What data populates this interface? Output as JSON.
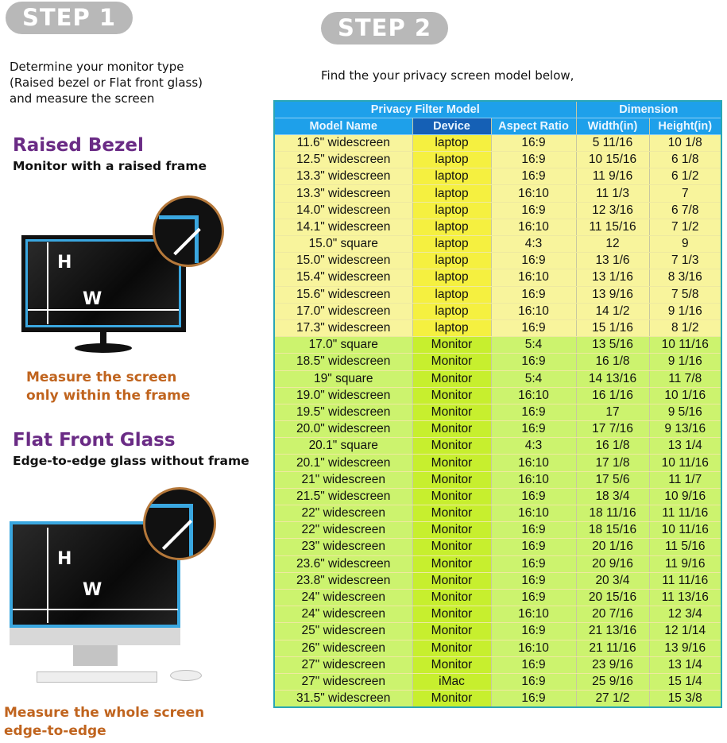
{
  "step1": {
    "badge": "STEP 1",
    "intro": [
      "Determine your monitor type",
      "(Raised bezel or Flat front glass)",
      "and measure the screen"
    ],
    "raised": {
      "title": "Raised Bezel",
      "subtitle": "Monitor with a raised frame",
      "note": [
        "Measure the screen",
        "only within the frame"
      ]
    },
    "flat": {
      "title": "Flat Front Glass",
      "subtitle": "Edge-to-edge glass without frame",
      "note": [
        "Measure the whole screen",
        "edge-to-edge"
      ]
    },
    "labels": {
      "h": "H",
      "w": "W"
    }
  },
  "step2": {
    "badge": "STEP 2",
    "intro": "Find the your privacy screen model below,"
  },
  "table": {
    "group_headers": [
      "Privacy Filter Model",
      "Dimension"
    ],
    "columns": [
      "Model Name",
      "Device",
      "Aspect Ratio",
      "Width(in)",
      "Height(in)"
    ],
    "colors": {
      "laptop_row": "#f8f49c",
      "monitor_row": "#ccf36e",
      "header": "#1ea0ea"
    },
    "rows": [
      [
        "11.6\" widescreen",
        "laptop",
        "16:9",
        "5 11/16",
        "10 1/8"
      ],
      [
        "12.5\" widescreen",
        "laptop",
        "16:9",
        "10 15/16",
        "6 1/8"
      ],
      [
        "13.3\" widescreen",
        "laptop",
        "16:9",
        "11 9/16",
        "6 1/2"
      ],
      [
        "13.3\" widescreen",
        "laptop",
        "16:10",
        "11 1/3",
        "7"
      ],
      [
        "14.0\" widescreen",
        "laptop",
        "16:9",
        "12 3/16",
        "6 7/8"
      ],
      [
        "14.1\" widescreen",
        "laptop",
        "16:10",
        "11 15/16",
        "7 1/2"
      ],
      [
        "15.0\" square",
        "laptop",
        "4:3",
        "12",
        "9"
      ],
      [
        "15.0\" widescreen",
        "laptop",
        "16:9",
        "13 1/6",
        "7 1/3"
      ],
      [
        "15.4\" widescreen",
        "laptop",
        "16:10",
        "13 1/16",
        "8 3/16"
      ],
      [
        "15.6\" widescreen",
        "laptop",
        "16:9",
        "13 9/16",
        "7 5/8"
      ],
      [
        "17.0\" widescreen",
        "laptop",
        "16:10",
        "14 1/2",
        "9 1/16"
      ],
      [
        "17.3\" widescreen",
        "laptop",
        "16:9",
        "15 1/16",
        "8 1/2"
      ],
      [
        "17.0\" square",
        "Monitor",
        "5:4",
        "13 5/16",
        "10 11/16"
      ],
      [
        "18.5\" widescreen",
        "Monitor",
        "16:9",
        "16 1/8",
        "9 1/16"
      ],
      [
        "19\" square",
        "Monitor",
        "5:4",
        "14 13/16",
        "11 7/8"
      ],
      [
        "19.0\" widescreen",
        "Monitor",
        "16:10",
        "16 1/16",
        "10 1/16"
      ],
      [
        "19.5\" widescreen",
        "Monitor",
        "16:9",
        "17",
        "9 5/16"
      ],
      [
        "20.0\" widescreen",
        "Monitor",
        "16:9",
        "17 7/16",
        "9 13/16"
      ],
      [
        "20.1\" square",
        "Monitor",
        "4:3",
        "16 1/8",
        "13 1/4"
      ],
      [
        "20.1\" widescreen",
        "Monitor",
        "16:10",
        "17 1/8",
        "10 11/16"
      ],
      [
        "21\" widescreen",
        "Monitor",
        "16:10",
        "17 5/6",
        "11 1/7"
      ],
      [
        "21.5\" widescreen",
        "Monitor",
        "16:9",
        "18 3/4",
        "10 9/16"
      ],
      [
        "22\" widescreen",
        "Monitor",
        "16:10",
        "18 11/16",
        "11 11/16"
      ],
      [
        "22\" widescreen",
        "Monitor",
        "16:9",
        "18 15/16",
        "10 11/16"
      ],
      [
        "23\" widescreen",
        "Monitor",
        "16:9",
        "20 1/16",
        "11 5/16"
      ],
      [
        "23.6\" widescreen",
        "Monitor",
        "16:9",
        "20 9/16",
        "11 9/16"
      ],
      [
        "23.8\" widescreen",
        "Monitor",
        "16:9",
        "20 3/4",
        "11 11/16"
      ],
      [
        "24\" widescreen",
        "Monitor",
        "16:9",
        "20 15/16",
        "11 13/16"
      ],
      [
        "24\" widescreen",
        "Monitor",
        "16:10",
        "20 7/16",
        "12 3/4"
      ],
      [
        "25\" widescreen",
        "Monitor",
        "16:9",
        "21 13/16",
        "12 1/14"
      ],
      [
        "26\" widescreen",
        "Monitor",
        "16:10",
        "21 11/16",
        "13 9/16"
      ],
      [
        "27\" widescreen",
        "Monitor",
        "16:9",
        "23 9/16",
        "13 1/4"
      ],
      [
        "27\" widescreen",
        "iMac",
        "16:9",
        "25 9/16",
        "15 1/4"
      ],
      [
        "31.5\" widescreen",
        "Monitor",
        "16:9",
        "27 1/2",
        "15 3/8"
      ]
    ]
  }
}
